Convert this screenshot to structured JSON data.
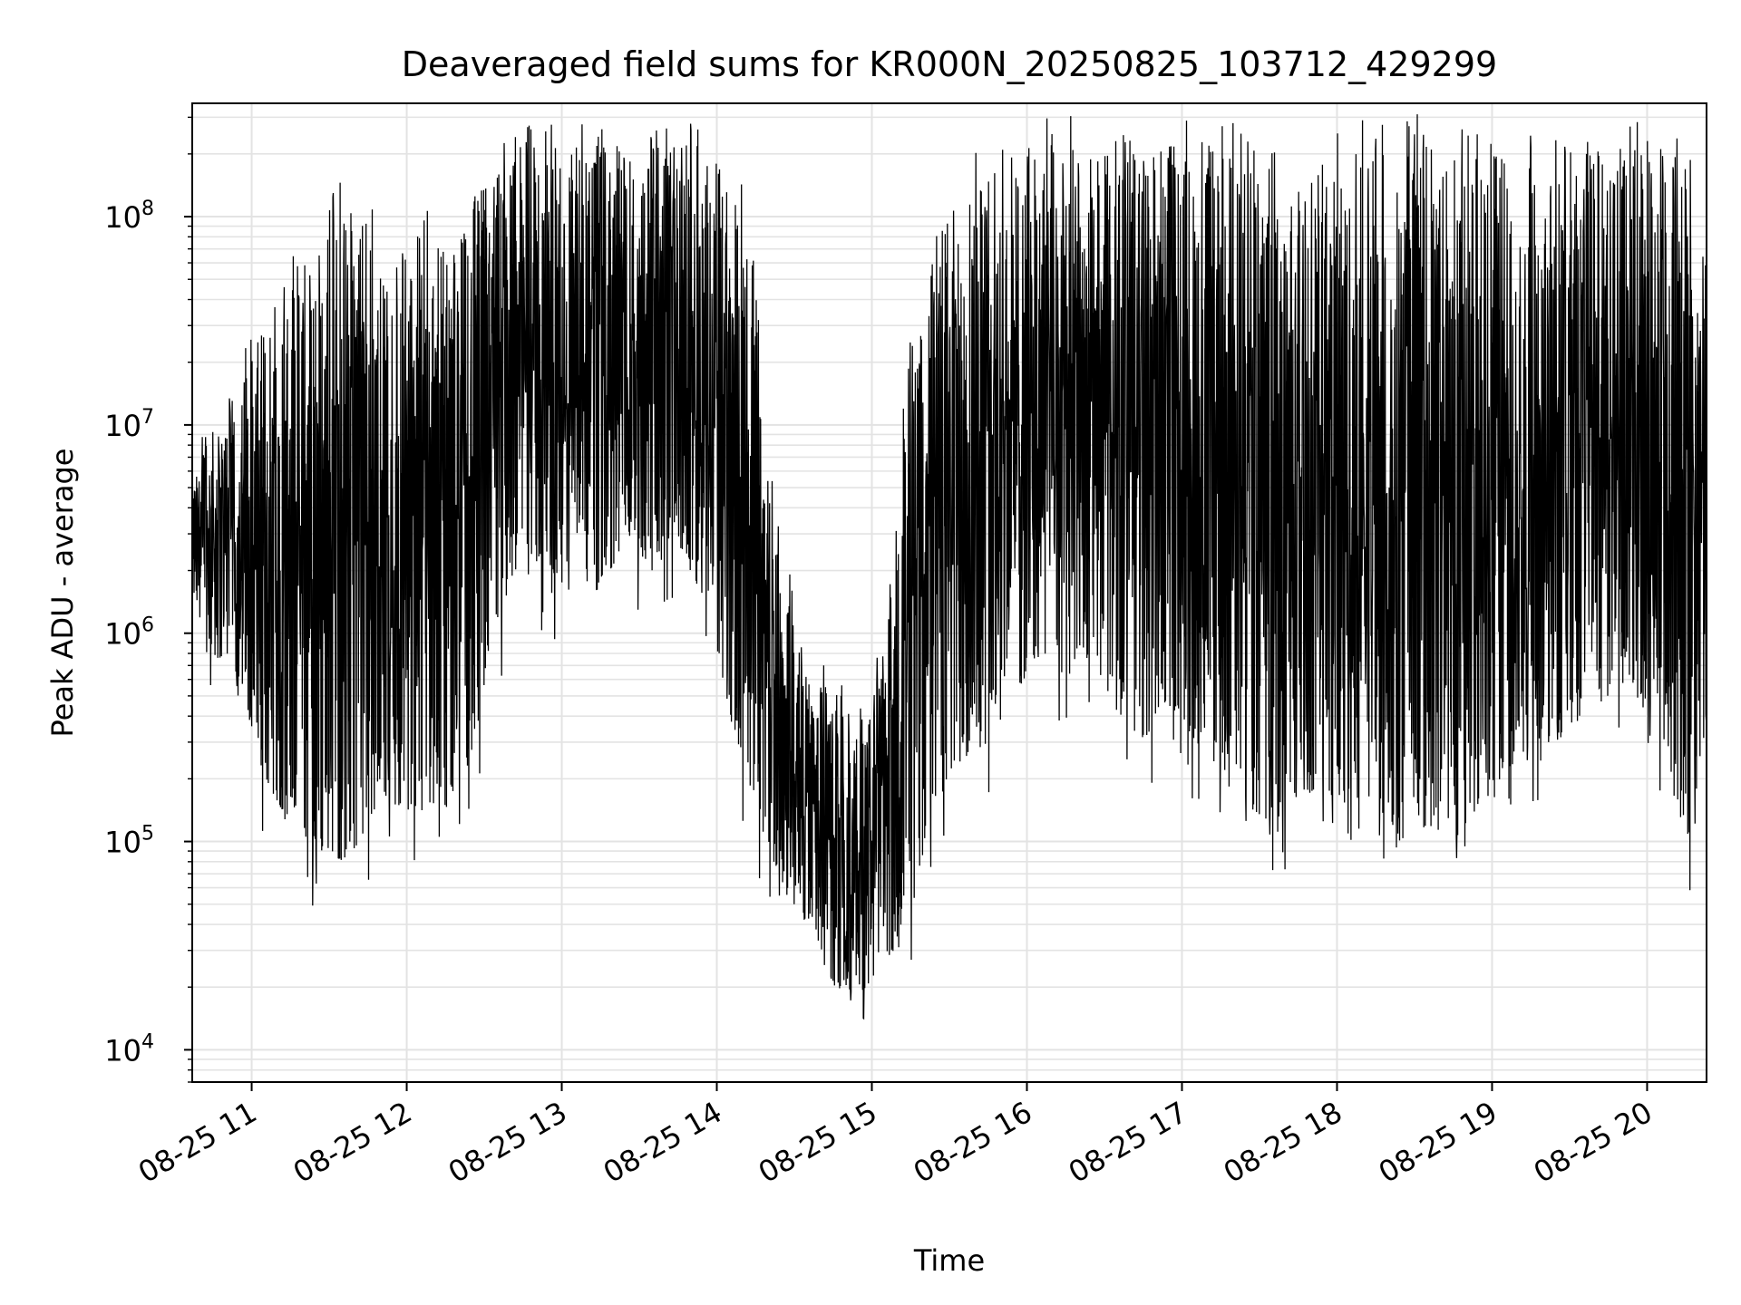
{
  "chart_data": {
    "type": "line",
    "title": "Deaveraged field sums for KR000N_20250825_103712_429299",
    "xlabel": "Time",
    "ylabel": "Peak ADU - average",
    "xscale": "time",
    "yscale": "log",
    "xlim": [
      "2025-08-25 10:37",
      "2025-08-25 20:23"
    ],
    "ylim": [
      7000,
      350000000
    ],
    "grid": true,
    "legend": "none",
    "line_color": "#000000",
    "x_ticks": [
      "08-25 11",
      "08-25 12",
      "08-25 13",
      "08-25 14",
      "08-25 15",
      "08-25 16",
      "08-25 17",
      "08-25 18",
      "08-25 19",
      "08-25 20"
    ],
    "y_ticks": [
      {
        "value": 10000,
        "mantissa": "10",
        "exponent": "4"
      },
      {
        "value": 100000,
        "mantissa": "10",
        "exponent": "5"
      },
      {
        "value": 1000000,
        "mantissa": "10",
        "exponent": "6"
      },
      {
        "value": 10000000,
        "mantissa": "10",
        "exponent": "7"
      },
      {
        "value": 100000000,
        "mantissa": "10",
        "exponent": "8"
      }
    ],
    "series": [
      {
        "time": [
          "10:37",
          "10:45",
          "10:55",
          "11:05",
          "11:15",
          "11:25",
          "11:35",
          "11:45",
          "11:55",
          "12:05",
          "12:15",
          "12:25",
          "12:35",
          "12:45",
          "12:55",
          "13:05",
          "13:15",
          "13:25",
          "13:35",
          "13:45",
          "13:55",
          "14:05",
          "14:15",
          "14:25",
          "14:35",
          "14:45",
          "14:55",
          "15:05",
          "15:15",
          "15:25",
          "15:35",
          "15:45",
          "15:55",
          "16:05",
          "16:15",
          "16:25",
          "16:35",
          "16:45",
          "16:55",
          "17:05",
          "17:15",
          "17:25",
          "17:35",
          "17:45",
          "17:55",
          "18:05",
          "18:15",
          "18:25",
          "18:35",
          "18:45",
          "18:55",
          "19:05",
          "19:15",
          "19:25",
          "19:35",
          "19:45",
          "19:55",
          "20:05",
          "20:15",
          "20:23"
        ],
        "low": [
          1500000,
          800000,
          600000,
          200000,
          120000,
          90000,
          80000,
          110000,
          150000,
          130000,
          150000,
          250000,
          1000000,
          3000000,
          1500000,
          2000000,
          1500000,
          3000000,
          2000000,
          2500000,
          1500000,
          400000,
          150000,
          60000,
          40000,
          20000,
          18000,
          25000,
          50000,
          150000,
          250000,
          300000,
          500000,
          800000,
          600000,
          800000,
          400000,
          300000,
          500000,
          300000,
          200000,
          150000,
          120000,
          150000,
          200000,
          100000,
          150000,
          100000,
          120000,
          100000,
          150000,
          200000,
          300000,
          300000,
          400000,
          500000,
          600000,
          300000,
          100000,
          150000
        ],
        "high": [
          5000000,
          10000000,
          15000000,
          30000000,
          50000000,
          80000000,
          120000000,
          90000000,
          40000000,
          100000000,
          60000000,
          120000000,
          180000000,
          220000000,
          220000000,
          220000000,
          220000000,
          220000000,
          220000000,
          220000000,
          220000000,
          200000000,
          50000000,
          2000000,
          700000,
          500000,
          300000,
          1000000,
          20000000,
          80000000,
          150000000,
          220000000,
          220000000,
          220000000,
          220000000,
          220000000,
          200000000,
          200000000,
          220000000,
          200000000,
          220000000,
          180000000,
          200000000,
          150000000,
          180000000,
          220000000,
          200000000,
          220000000,
          220000000,
          220000000,
          220000000,
          220000000,
          220000000,
          220000000,
          220000000,
          220000000,
          220000000,
          220000000,
          200000000,
          40000000
        ]
      }
    ]
  }
}
